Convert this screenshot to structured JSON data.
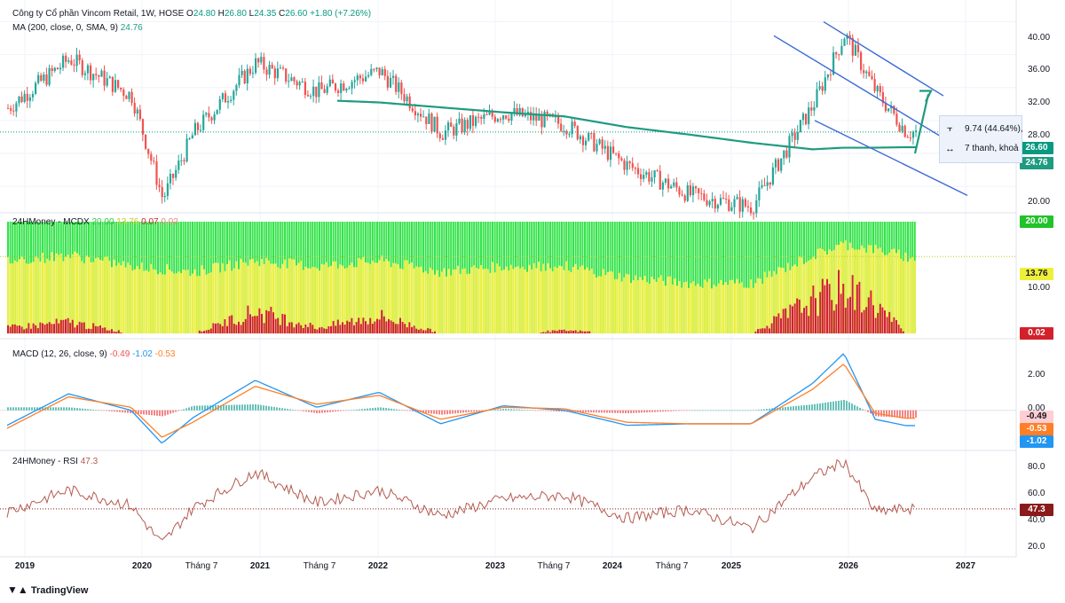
{
  "header": {
    "title": "Công ty Cổ phần Vincom Retail, 1W, HOSE",
    "o_label": "O",
    "o_value": "24.80",
    "h_label": "H",
    "h_value": "26.80",
    "l_label": "L",
    "l_value": "24.35",
    "c_label": "C",
    "c_value": "26.60",
    "change": "+1.80 (+7.26%)",
    "ma_label": "MA (200, close, 0, SMA, 9)",
    "ma_value": "24.76"
  },
  "indicators": {
    "mcdx_label": "24HMoney - MCDX",
    "mcdx_values": [
      "20.00",
      "13.76",
      "0.07",
      "0.02"
    ],
    "macd_label": "MACD (12, 26, close, 9)",
    "macd_values": [
      "-0.49",
      "-1.02",
      "-0.53"
    ],
    "rsi_label": "24HMoney - RSI",
    "rsi_value": "47.3"
  },
  "price_axis": [
    "40.00",
    "36.00",
    "32.00",
    "28.00",
    "20.00"
  ],
  "mcdx_axis": [
    "10.00"
  ],
  "macd_axis": [
    "2.00",
    "0.00"
  ],
  "rsi_axis": [
    "80.0",
    "60.0",
    "40.0",
    "20.0"
  ],
  "pills": {
    "price": "26.60",
    "ma": "24.76",
    "mcdx_top": "20.00",
    "mcdx_mid": "13.76",
    "mcdx_bottom": "0.02",
    "macd_hist": "-0.49",
    "macd_signal": "-0.53",
    "macd_line": "-1.02",
    "rsi": "47.3"
  },
  "measure": {
    "line1": "9.74 (44.64%),",
    "line2": "7 thanh, khoả"
  },
  "time_axis": [
    "2019",
    "2020",
    "Tháng 7",
    "2021",
    "Tháng 7",
    "2022",
    "2023",
    "Tháng 7",
    "2024",
    "Tháng 7",
    "2025",
    "2026",
    "2027"
  ],
  "brand": "TradingView",
  "colors": {
    "up": "#26a69a",
    "down": "#ef5350",
    "ma": "#1f9b80",
    "channel": "#3d6bd6",
    "macd": "#2196f3",
    "signal": "#ff7f27",
    "rsi": "#b55a50",
    "mcdx_green": "#34e34a",
    "mcdx_yellow": "#eeef3b",
    "mcdx_red": "#d3212b"
  },
  "chart_data": [
    {
      "type": "line",
      "title": "Công ty Cổ phần Vincom Retail, 1W, HOSE",
      "x": [
        "2019-01",
        "2019-07",
        "2020-01",
        "2020-04",
        "2020-07",
        "2021-01",
        "2021-07",
        "2022-01",
        "2022-07",
        "2023-01",
        "2023-07",
        "2024-01",
        "2024-07",
        "2025-01",
        "2025-07",
        "2025-10",
        "2026-01",
        "2026-04"
      ],
      "series": [
        {
          "name": "Close",
          "values": [
            29.5,
            35.5,
            31.0,
            18.5,
            26.5,
            35.0,
            31.5,
            34.0,
            26.5,
            29.0,
            27.5,
            22.5,
            19.0,
            17.5,
            30.0,
            38.5,
            31.5,
            26.6
          ]
        },
        {
          "name": "MA (200, close, 0, SMA, 9)",
          "values": [
            null,
            null,
            null,
            null,
            null,
            null,
            30.5,
            30.2,
            29.6,
            29.0,
            28.5,
            27.2,
            26.3,
            25.3,
            24.5,
            24.7,
            24.7,
            24.76
          ]
        }
      ],
      "ylim": [
        17,
        42
      ]
    },
    {
      "type": "area",
      "title": "24HMoney - MCDX",
      "x": [
        "2019-01",
        "2019-07",
        "2020-01",
        "2020-07",
        "2021-01",
        "2021-07",
        "2022-01",
        "2022-07",
        "2023-01",
        "2023-07",
        "2024-01",
        "2024-07",
        "2025-01",
        "2025-07",
        "2025-10",
        "2026-01",
        "2026-04"
      ],
      "series": [
        {
          "name": "yellow",
          "values": [
            13,
            14,
            12,
            11,
            13,
            12,
            13,
            11,
            12,
            12,
            10,
            9,
            9,
            14,
            16,
            15,
            13.76
          ]
        },
        {
          "name": "red",
          "values": [
            1,
            2,
            0,
            0,
            4,
            1,
            3,
            0,
            0,
            0.5,
            0,
            0,
            0,
            6,
            8,
            5,
            0.02
          ]
        }
      ],
      "ylim": [
        0,
        20
      ]
    },
    {
      "type": "line",
      "title": "MACD (12, 26, close, 9)",
      "x": [
        "2019-01",
        "2019-07",
        "2020-01",
        "2020-04",
        "2020-07",
        "2021-01",
        "2021-07",
        "2022-01",
        "2022-07",
        "2023-01",
        "2023-07",
        "2024-01",
        "2024-07",
        "2025-01",
        "2025-07",
        "2025-10",
        "2026-01",
        "2026-04"
      ],
      "series": [
        {
          "name": "MACD",
          "values": [
            -1.0,
            1.1,
            0.0,
            -2.2,
            -0.5,
            2.0,
            0.2,
            1.2,
            -0.9,
            0.3,
            0.0,
            -1.0,
            -0.9,
            -0.9,
            1.8,
            3.8,
            -0.6,
            -1.02
          ]
        },
        {
          "name": "Signal",
          "values": [
            -1.2,
            0.9,
            0.2,
            -1.8,
            -0.8,
            1.6,
            0.4,
            1.0,
            -0.6,
            0.2,
            0.1,
            -0.8,
            -0.9,
            -0.9,
            1.4,
            3.1,
            -0.2,
            -0.53
          ]
        }
      ],
      "ylim": [
        -2.5,
        4
      ]
    },
    {
      "type": "line",
      "title": "24HMoney - RSI",
      "x": [
        "2019-01",
        "2019-07",
        "2020-01",
        "2020-04",
        "2020-07",
        "2021-01",
        "2021-07",
        "2022-01",
        "2022-07",
        "2023-01",
        "2023-07",
        "2024-01",
        "2024-07",
        "2025-01",
        "2025-07",
        "2025-10",
        "2026-01",
        "2026-04"
      ],
      "series": [
        {
          "name": "RSI",
          "values": [
            45,
            62,
            50,
            20,
            48,
            76,
            52,
            62,
            42,
            55,
            58,
            40,
            47,
            32,
            72,
            84,
            45,
            47.3
          ]
        }
      ],
      "ylim": [
        12,
        88
      ]
    }
  ]
}
